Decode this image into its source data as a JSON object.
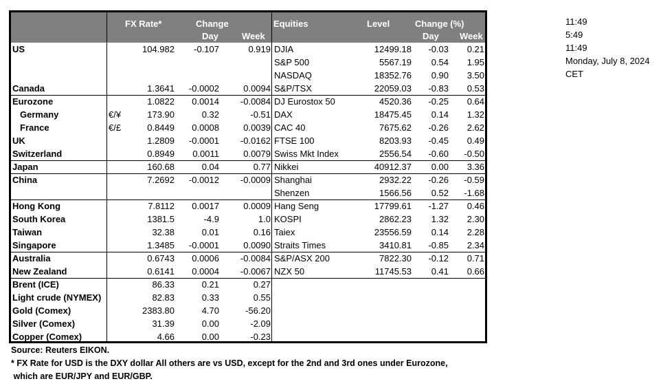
{
  "header": {
    "fx_rate": "FX Rate*",
    "change": "Change",
    "day": "Day",
    "week": "Week",
    "equities": "Equities",
    "level": "Level",
    "change_pct": "Change (%)",
    "eq_day": "Day",
    "eq_week": "Week"
  },
  "rows": [
    {
      "name": "US",
      "ccy": "",
      "fx": "104.982",
      "fx_day": "-0.107",
      "fx_week": "0.919",
      "eq": "DJIA",
      "level": "12499.18",
      "eq_day": "-0.03",
      "eq_week": "0.21",
      "indent": false
    },
    {
      "name": "",
      "ccy": "",
      "fx": "",
      "fx_day": "",
      "fx_week": "",
      "eq": "S&P 500",
      "level": "5567.19",
      "eq_day": "0.54",
      "eq_week": "1.95",
      "indent": false
    },
    {
      "name": "",
      "ccy": "",
      "fx": "",
      "fx_day": "",
      "fx_week": "",
      "eq": "NASDAQ",
      "level": "18352.76",
      "eq_day": "0.90",
      "eq_week": "3.50",
      "indent": false
    },
    {
      "name": "Canada",
      "ccy": "",
      "fx": "1.3641",
      "fx_day": "-0.0002",
      "fx_week": "0.0094",
      "eq": "S&P/TSX",
      "level": "22059.03",
      "eq_day": "-0.83",
      "eq_week": "0.53",
      "indent": false
    },
    {
      "name": "Eurozone",
      "ccy": "",
      "fx": "1.0822",
      "fx_day": "0.0014",
      "fx_week": "-0.0084",
      "eq": "DJ Eurostox 50",
      "level": "4520.36",
      "eq_day": "-0.25",
      "eq_week": "0.64",
      "indent": false
    },
    {
      "name": "Germany",
      "ccy": "€/¥",
      "fx": "173.90",
      "fx_day": "0.32",
      "fx_week": "-0.51",
      "eq": "DAX",
      "level": "18475.45",
      "eq_day": "0.14",
      "eq_week": "1.32",
      "indent": true
    },
    {
      "name": "France",
      "ccy": "€/£",
      "fx": "0.8449",
      "fx_day": "0.0008",
      "fx_week": "0.0039",
      "eq": "CAC 40",
      "level": "7675.62",
      "eq_day": "-0.26",
      "eq_week": "2.62",
      "indent": true
    },
    {
      "name": "UK",
      "ccy": "",
      "fx": "1.2809",
      "fx_day": "-0.0001",
      "fx_week": "-0.0162",
      "eq": "FTSE 100",
      "level": "8203.93",
      "eq_day": "-0.45",
      "eq_week": "0.49",
      "indent": false
    },
    {
      "name": "Switzerland",
      "ccy": "",
      "fx": "0.8949",
      "fx_day": "0.0011",
      "fx_week": "0.0079",
      "eq": "Swiss Mkt Index",
      "level": "2556.54",
      "eq_day": "-0.60",
      "eq_week": "-0.50",
      "indent": false
    },
    {
      "name": "Japan",
      "ccy": "",
      "fx": "160.68",
      "fx_day": "0.04",
      "fx_week": "0.77",
      "eq": "Nikkei",
      "level": "40912.37",
      "eq_day": "0.00",
      "eq_week": "3.36",
      "indent": false
    },
    {
      "name": "China",
      "ccy": "",
      "fx": "7.2692",
      "fx_day": "-0.0012",
      "fx_week": "-0.0009",
      "eq": "Shanghai",
      "level": "2932.22",
      "eq_day": "-0.26",
      "eq_week": "-0.59",
      "indent": false
    },
    {
      "name": "",
      "ccy": "",
      "fx": "",
      "fx_day": "",
      "fx_week": "",
      "eq": "Shenzen",
      "level": "1566.56",
      "eq_day": "0.52",
      "eq_week": "-1.68",
      "indent": false
    },
    {
      "name": "Hong Kong",
      "ccy": "",
      "fx": "7.8112",
      "fx_day": "0.0017",
      "fx_week": "0.0009",
      "eq": "Hang Seng",
      "level": "17799.61",
      "eq_day": "-1.27",
      "eq_week": "0.46",
      "indent": false
    },
    {
      "name": "South Korea",
      "ccy": "",
      "fx": "1381.5",
      "fx_day": "-4.9",
      "fx_week": "1.0",
      "eq": "KOSPI",
      "level": "2862.23",
      "eq_day": "1.32",
      "eq_week": "2.30",
      "indent": false
    },
    {
      "name": "Taiwan",
      "ccy": "",
      "fx": "32.38",
      "fx_day": "0.01",
      "fx_week": "0.16",
      "eq": "Taiex",
      "level": "23556.59",
      "eq_day": "0.14",
      "eq_week": "2.28",
      "indent": false
    },
    {
      "name": "Singapore",
      "ccy": "",
      "fx": "1.3485",
      "fx_day": "-0.0001",
      "fx_week": "0.0090",
      "eq": "Straits Times",
      "level": "3410.81",
      "eq_day": "-0.85",
      "eq_week": "2.34",
      "indent": false
    },
    {
      "name": "Australia",
      "ccy": "",
      "fx": "0.6743",
      "fx_day": "0.0006",
      "fx_week": "-0.0084",
      "eq": "S&P/ASX  200",
      "level": "7822.30",
      "eq_day": "-0.12",
      "eq_week": "0.71",
      "indent": false
    },
    {
      "name": "New Zealand",
      "ccy": "",
      "fx": "0.6141",
      "fx_day": "0.0004",
      "fx_week": "-0.0067",
      "eq": "NZX 50",
      "level": "11745.53",
      "eq_day": "0.41",
      "eq_week": "0.66",
      "indent": false
    },
    {
      "name": "Brent (ICE)",
      "ccy": "",
      "fx": "86.33",
      "fx_day": "0.21",
      "fx_week": "0.27",
      "eq": "",
      "level": "",
      "eq_day": "",
      "eq_week": "",
      "indent": false
    },
    {
      "name": "Light crude (NYMEX)",
      "ccy": "",
      "fx": "82.83",
      "fx_day": "0.33",
      "fx_week": "0.55",
      "eq": "",
      "level": "",
      "eq_day": "",
      "eq_week": "",
      "indent": false
    },
    {
      "name": "Gold (Comex)",
      "ccy": "",
      "fx": "2383.80",
      "fx_day": "4.70",
      "fx_week": "-56.20",
      "eq": "",
      "level": "",
      "eq_day": "",
      "eq_week": "",
      "indent": false
    },
    {
      "name": "Silver (Comex)",
      "ccy": "",
      "fx": "31.39",
      "fx_day": "0.00",
      "fx_week": "-2.09",
      "eq": "",
      "level": "",
      "eq_day": "",
      "eq_week": "",
      "indent": false
    },
    {
      "name": "Copper (Comex)",
      "ccy": "",
      "fx": "4.66",
      "fx_day": "0.00",
      "fx_week": "-0.23",
      "eq": "",
      "level": "",
      "eq_day": "",
      "eq_week": "",
      "indent": false
    }
  ],
  "side_info": [
    "11:49",
    "5:49",
    "11:49",
    "Monday, July 8, 2024",
    "CET"
  ],
  "footer": {
    "source": "Source:  Reuters EIKON.",
    "note1": "* FX Rate for USD is the DXY dollar  All others are vs USD, except for the 2nd and 3rd ones under Eurozone,",
    "note2": " which are EUR/JPY and EUR/GBP."
  },
  "colors": {
    "header_bg": "#808080",
    "header_text": "#ffffff",
    "border": "#000000"
  }
}
